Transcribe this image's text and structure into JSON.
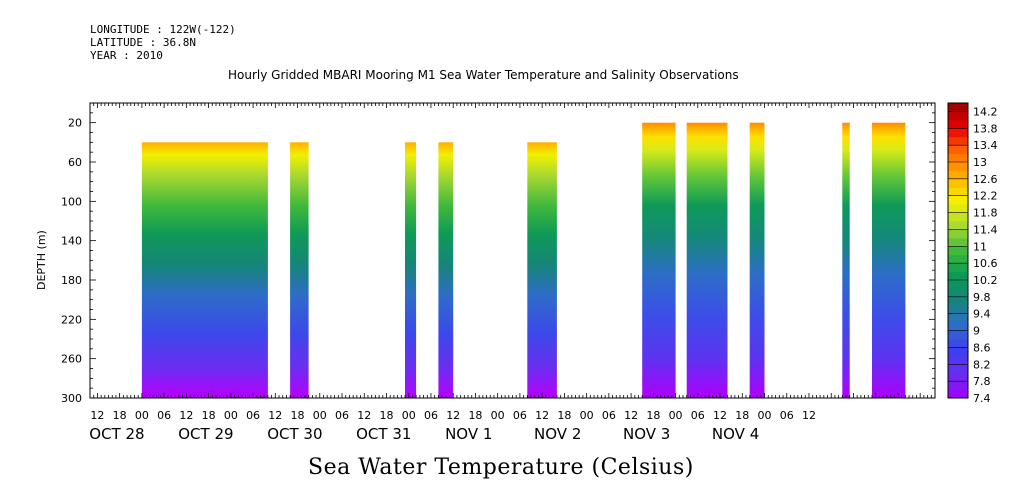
{
  "header": {
    "longitude": "LONGITUDE : 122W(-122)",
    "latitude": "LATITUDE : 36.8N",
    "year": "YEAR : 2010"
  },
  "chart_data": {
    "type": "heatmap",
    "title": "Hourly Gridded MBARI Mooring M1 Sea Water Temperature and Salinity Observations",
    "bottom_title": "Sea Water Temperature (Celsius)",
    "ylabel": "DEPTH (m)",
    "xlabel": "",
    "ylim": [
      300,
      0
    ],
    "yticks": [
      20,
      60,
      100,
      140,
      180,
      220,
      260,
      300
    ],
    "x_hours_range": [
      -14,
      214
    ],
    "x_hour_labels": [
      "12",
      "18",
      "00",
      "06",
      "12",
      "18",
      "00",
      "06",
      "12",
      "18",
      "00",
      "06",
      "12",
      "18",
      "00",
      "06",
      "12",
      "18",
      "00",
      "06",
      "12",
      "18",
      "00",
      "06",
      "12",
      "18",
      "00",
      "06",
      "12",
      "18",
      "00",
      "06",
      "12"
    ],
    "date_labels": [
      "OCT 28",
      "OCT 29",
      "OCT 30",
      "OCT 31",
      "NOV  1",
      "NOV  2",
      "NOV  3",
      "NOV  4"
    ],
    "colorbar": {
      "min": 7.4,
      "max": 14.4,
      "labels": [
        "14.2",
        "13.8",
        "13.4",
        "13",
        "12.6",
        "12.2",
        "11.8",
        "11.4",
        "11",
        "10.6",
        "10.2",
        "9.8",
        "9.4",
        "9",
        "8.6",
        "8.2",
        "7.8",
        "7.4"
      ],
      "colors": [
        "#a000ff",
        "#6a2cf0",
        "#3e3ff0",
        "#2d6fc8",
        "#14857a",
        "#0c9a55",
        "#3fba3a",
        "#a8d830",
        "#f5f200",
        "#ffb000",
        "#ff6a00",
        "#e80000",
        "#990000"
      ]
    },
    "data_blocks": [
      {
        "start_hour": 0,
        "end_hour": 34,
        "top_depth": 40
      },
      {
        "start_hour": 40,
        "end_hour": 45,
        "top_depth": 40
      },
      {
        "start_hour": 71,
        "end_hour": 74,
        "top_depth": 40
      },
      {
        "start_hour": 80,
        "end_hour": 84,
        "top_depth": 40
      },
      {
        "start_hour": 104,
        "end_hour": 112,
        "top_depth": 40
      },
      {
        "start_hour": 135,
        "end_hour": 144,
        "top_depth": 20
      },
      {
        "start_hour": 147,
        "end_hour": 158,
        "top_depth": 20
      },
      {
        "start_hour": 164,
        "end_hour": 168,
        "top_depth": 20
      },
      {
        "start_hour": 189,
        "end_hour": 191,
        "top_depth": 20
      },
      {
        "start_hour": 197,
        "end_hour": 206,
        "top_depth": 20
      }
    ]
  }
}
